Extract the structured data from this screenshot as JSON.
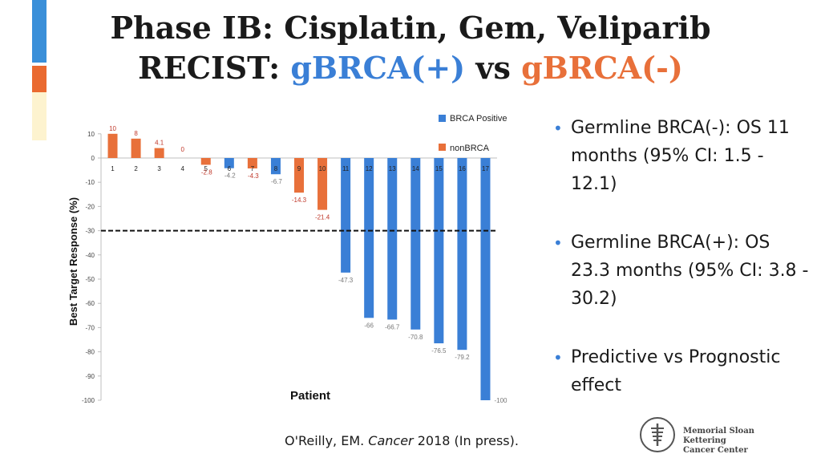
{
  "title": {
    "line1": "Phase IB: Cisplatin, Gem, Veliparib",
    "line2_prefix": "RECIST: ",
    "line2_pos": "gBRCA(+)",
    "line2_mid": " vs ",
    "line2_neg": "gBRCA(-)"
  },
  "colors": {
    "brca_positive": "#3a7fd6",
    "nonbrca": "#e8703a",
    "deco_blue": "#3a8fd9",
    "deco_orange": "#ea6a30",
    "deco_cream": "#fdf3cf"
  },
  "chart_data": {
    "type": "bar",
    "categories": [
      "1",
      "2",
      "3",
      "4",
      "5",
      "6",
      "7",
      "8",
      "9",
      "10",
      "11",
      "12",
      "13",
      "14",
      "15",
      "16",
      "17"
    ],
    "values": [
      10,
      8,
      4.1,
      0,
      -2.8,
      -4.2,
      -4.3,
      -6.7,
      -14.3,
      -21.4,
      -47.3,
      -66,
      -66.7,
      -70.8,
      -76.5,
      -79.2,
      -100
    ],
    "group": [
      "nonBRCA",
      "nonBRCA",
      "nonBRCA",
      "nonBRCA",
      "nonBRCA",
      "BRCA Positive",
      "nonBRCA",
      "BRCA Positive",
      "nonBRCA",
      "nonBRCA",
      "BRCA Positive",
      "BRCA Positive",
      "BRCA Positive",
      "BRCA Positive",
      "BRCA Positive",
      "BRCA Positive",
      "BRCA Positive"
    ],
    "data_labels": [
      "10",
      "8",
      "4.1",
      "0",
      "-2.8",
      "-4.2",
      "-4.3",
      "-6.7",
      "-14.3",
      "-21.4",
      "-47.3",
      "-66",
      "-66.7",
      "-70.8",
      "-76.5",
      "-79.2",
      "-100"
    ],
    "legend": [
      "BRCA Positive",
      "nonBRCA"
    ],
    "legend_position": "top-right",
    "xlabel": "Patient",
    "ylabel": "Best Target Response (%)",
    "yticks": [
      10,
      0,
      -10,
      -20,
      -30,
      -40,
      -50,
      -60,
      -70,
      -80,
      -90,
      -100
    ],
    "ylim": [
      -100,
      10
    ],
    "reference_line": -30,
    "grid": false
  },
  "bullets": [
    "Germline BRCA(-): OS 11 months (95% CI: 1.5 - 12.1)",
    "Germline BRCA(+): OS 23.3 months (95% CI: 3.8 - 30.2)",
    "Predictive vs Prognostic effect"
  ],
  "citation": {
    "author": "O'Reilly, EM. ",
    "journal": "Cancer",
    "rest": " 2018 (In press)."
  },
  "logo": {
    "line1": "Memorial Sloan Kettering",
    "line2": "Cancer Center"
  }
}
